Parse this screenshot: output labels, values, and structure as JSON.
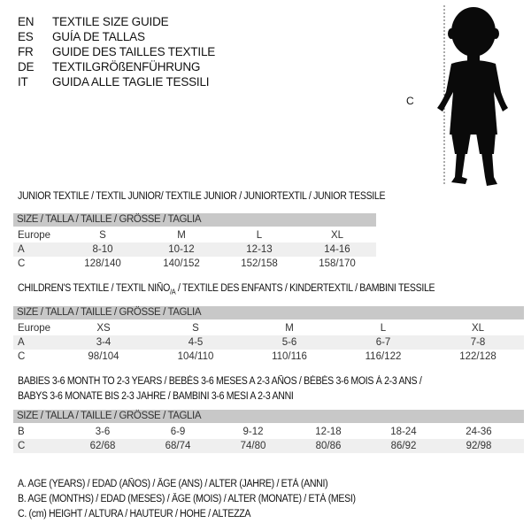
{
  "languages": [
    {
      "code": "EN",
      "text": "TEXTILE SIZE GUIDE"
    },
    {
      "code": "ES",
      "text": "GUÍA DE TALLAS"
    },
    {
      "code": "FR",
      "text": "GUIDE DES TAILLES TEXTILE"
    },
    {
      "code": "DE",
      "text": "TEXTILGRÖßENFÜHRUNG"
    },
    {
      "code": "IT",
      "text": "GUIDA ALLE TAGLIE TESSILI"
    }
  ],
  "figure": {
    "label": "C",
    "icon": "baby-silhouette"
  },
  "size_header": "SIZE / TALLA / TAILLE / GRÖSSE / TAGLIA",
  "junior": {
    "title": "JUNIOR TEXTILE / TEXTIL JUNIOR/ TEXTILE JUNIOR / JUNIORTEXTIL / JUNIOR TESSILE",
    "rows": [
      {
        "label": "Europe",
        "values": [
          "S",
          "M",
          "L",
          "XL"
        ]
      },
      {
        "label": "A",
        "values": [
          "8-10",
          "10-12",
          "12-13",
          "14-16"
        ]
      },
      {
        "label": "C",
        "values": [
          "128/140",
          "140/152",
          "152/158",
          "158/170"
        ]
      }
    ]
  },
  "children": {
    "title_pre": "CHILDREN'S TEXTILE / TEXTIL NIÑO",
    "title_sub": "/A",
    "title_post": " / TEXTILE DES ENFANTS / KINDERTEXTIL / BAMBINI TESSILE",
    "rows": [
      {
        "label": "Europe",
        "values": [
          "XS",
          "S",
          "M",
          "L",
          "XL"
        ]
      },
      {
        "label": "A",
        "values": [
          "3-4",
          "4-5",
          "5-6",
          "6-7",
          "7-8"
        ]
      },
      {
        "label": "C",
        "values": [
          "98/104",
          "104/110",
          "110/116",
          "116/122",
          "122/128"
        ]
      }
    ]
  },
  "babies": {
    "title_line1": "BABIES 3-6 MONTH TO 2-3 YEARS / BEBÉS 3-6 MESES A 2-3 AÑOS / BÉBÉS 3-6 MOIS À 2-3 ANS /",
    "title_line2": "BABYS 3-6 MONATE BIS 2-3 JAHRE / BAMBINI 3-6 MESI A 2-3 ANNI",
    "rows": [
      {
        "label": "B",
        "values": [
          "3-6",
          "6-9",
          "9-12",
          "12-18",
          "18-24",
          "24-36"
        ]
      },
      {
        "label": "C",
        "values": [
          "62/68",
          "68/74",
          "74/80",
          "80/86",
          "86/92",
          "92/98"
        ]
      }
    ]
  },
  "legend": [
    "A. AGE (YEARS) / EDAD (AÑOS) / ÂGE (ANS) / ALTER (JAHRE) / ETÀ (ANNI)",
    "B. AGE (MONTHS) / EDAD (MESES) / ÂGE (MOIS) / ALTER (MONATE) / ETÀ (MESI)",
    "C. (cm) HEIGHT / ALTURA / HAUTEUR / HÖHE / ALTEZZA"
  ]
}
